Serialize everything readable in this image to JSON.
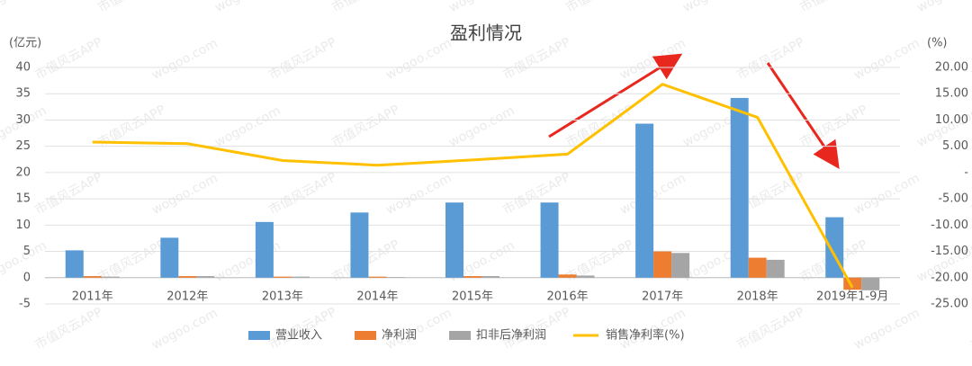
{
  "chart_data": {
    "type": "bar",
    "title": "盈利情况",
    "y_label": "(亿元)",
    "y2_label": "(%)",
    "watermark": [
      "wogoo.com",
      "市值风云APP"
    ],
    "categories": [
      "2011年",
      "2012年",
      "2013年",
      "2014年",
      "2015年",
      "2016年",
      "2017年",
      "2018年",
      "2019年1-9月"
    ],
    "series": [
      {
        "name": "营业收入",
        "color": "#5b9bd5",
        "values": [
          5.2,
          7.6,
          10.6,
          12.4,
          14.3,
          14.3,
          29.3,
          34.2,
          11.5
        ]
      },
      {
        "name": "净利润",
        "color": "#ed7d31",
        "values": [
          0.3,
          0.3,
          0.2,
          0.2,
          0.3,
          0.6,
          5.0,
          3.8,
          -2.3
        ]
      },
      {
        "name": "扣非后净利润",
        "color": "#a5a5a5",
        "values": [
          0.2,
          0.3,
          0.2,
          0.1,
          0.3,
          0.4,
          4.7,
          3.4,
          -2.4
        ]
      },
      {
        "name": "销售净利率(%)",
        "color": "#ffc000",
        "type": "line",
        "axis": "y2",
        "values": [
          5.8,
          5.5,
          2.3,
          1.4,
          2.4,
          3.5,
          16.8,
          10.5,
          -21.9
        ]
      }
    ],
    "ylim": [
      -5,
      40
    ],
    "yticks": [
      -5,
      0,
      5,
      10,
      15,
      20,
      25,
      30,
      35,
      40
    ],
    "y2lim": [
      -25,
      20
    ],
    "y2ticks": [
      {
        "value": -25,
        "label": "-25.00"
      },
      {
        "value": -20,
        "label": "-20.00"
      },
      {
        "value": -15,
        "label": "-15.00"
      },
      {
        "value": -10,
        "label": "-10.00"
      },
      {
        "value": -5,
        "label": "-5.00"
      },
      {
        "value": 0,
        "label": "-"
      },
      {
        "value": 5,
        "label": "5.00"
      },
      {
        "value": 10,
        "label": "10.00"
      },
      {
        "value": 15,
        "label": "15.00"
      },
      {
        "value": 20,
        "label": "20.00"
      }
    ],
    "grid": true,
    "legend": "bottom"
  }
}
